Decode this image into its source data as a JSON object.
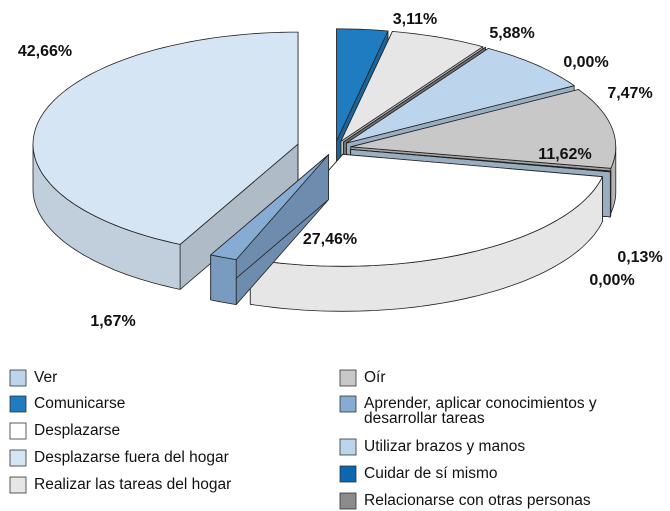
{
  "chart_data": {
    "type": "pie3d",
    "categories": [
      "Comunicarse",
      "Realizar las tareas del hogar",
      "Relacionarse con otras personas",
      "Ver",
      "Oír",
      "Cuidar de sí mismo",
      "Utilizar brazos y manos",
      "Desplazarse",
      "Aprender, aplicar conocimientos y desarrollar tareas",
      "Desplazarse fuera del hogar"
    ],
    "values": [
      3.11,
      5.88,
      0.0,
      7.47,
      11.62,
      0.13,
      0.0,
      27.46,
      1.67,
      42.66
    ],
    "value_labels": [
      "3,11%",
      "5,88%",
      "0,00%",
      "7,47%",
      "11,62%",
      "0,13%",
      "0,00%",
      "27,46%",
      "1,67%",
      "42,66%"
    ],
    "colors": [
      "#1f7cc1",
      "#e6e6e6",
      "#8c8c8c",
      "#bcd4ec",
      "#c8c8c8",
      "#0b67b0",
      "#bcd4ec",
      "#ffffff",
      "#86acd4",
      "#d6e5f4"
    ]
  }
}
